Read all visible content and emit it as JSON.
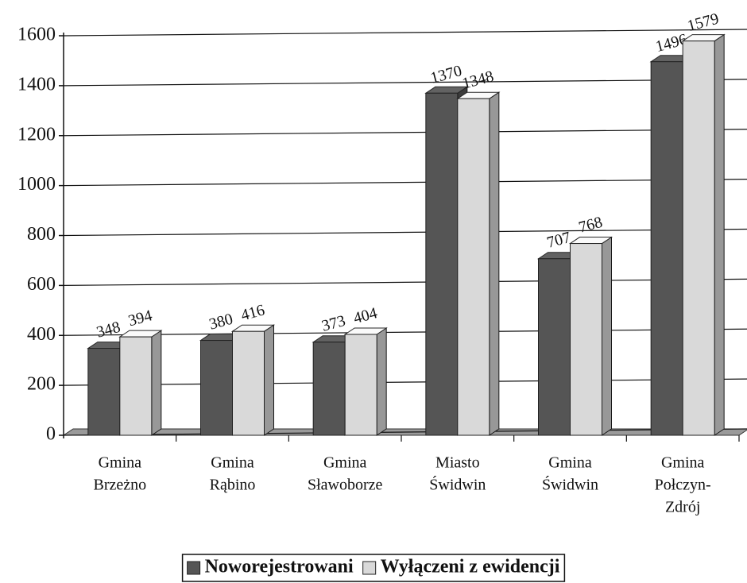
{
  "chart_data": {
    "type": "bar",
    "categories": [
      [
        "Gmina",
        "Brzeżno"
      ],
      [
        "Gmina",
        "Rąbino"
      ],
      [
        "Gmina",
        "Sławoborze"
      ],
      [
        "Miasto",
        "Świdwin"
      ],
      [
        "Gmina",
        "Świdwin"
      ],
      [
        "Gmina",
        "Połczyn-",
        "Zdrój"
      ]
    ],
    "series": [
      {
        "name": "Noworejestrowani",
        "color": "#555555",
        "values": [
          348,
          380,
          373,
          1370,
          707,
          1496
        ]
      },
      {
        "name": "Wyłączeni z ewidencji",
        "color": "#d9d9d9",
        "values": [
          394,
          416,
          404,
          1348,
          768,
          1579
        ]
      }
    ],
    "ylim": [
      0,
      1600
    ],
    "yticks": [
      0,
      200,
      400,
      600,
      800,
      1000,
      1200,
      1400,
      1600
    ],
    "grid": true,
    "legend": "bottom"
  }
}
